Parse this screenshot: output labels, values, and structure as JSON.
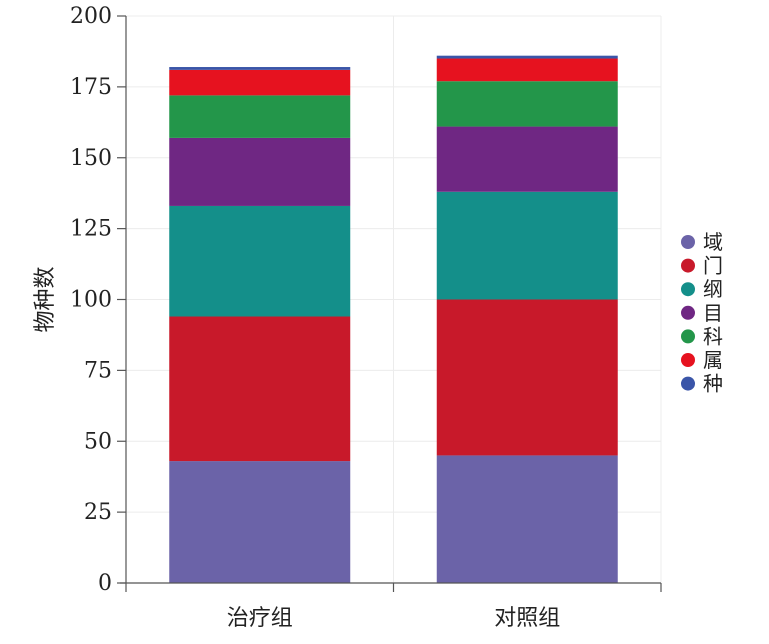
{
  "chart_data": {
    "type": "bar",
    "stacked": true,
    "categories": [
      "治疗组",
      "对照组"
    ],
    "ylabel": "物种数",
    "xlabel": "",
    "title": "",
    "ylim": [
      0,
      200
    ],
    "yticks": [
      0,
      25,
      50,
      75,
      100,
      125,
      150,
      175,
      200
    ],
    "grid": true,
    "legend_position": "right",
    "series": [
      {
        "name": "域",
        "color": "#6b63a8",
        "values": [
          43,
          45
        ]
      },
      {
        "name": "门",
        "color": "#c8192a",
        "values": [
          51,
          55
        ]
      },
      {
        "name": "纲",
        "color": "#148f8a",
        "values": [
          39,
          38
        ]
      },
      {
        "name": "目",
        "color": "#6f2783",
        "values": [
          24,
          23
        ]
      },
      {
        "name": "科",
        "color": "#23964a",
        "values": [
          15,
          16
        ]
      },
      {
        "name": "属",
        "color": "#e6121f",
        "values": [
          9,
          8
        ]
      },
      {
        "name": "种",
        "color": "#3a55a8",
        "values": [
          1,
          1
        ]
      }
    ]
  }
}
